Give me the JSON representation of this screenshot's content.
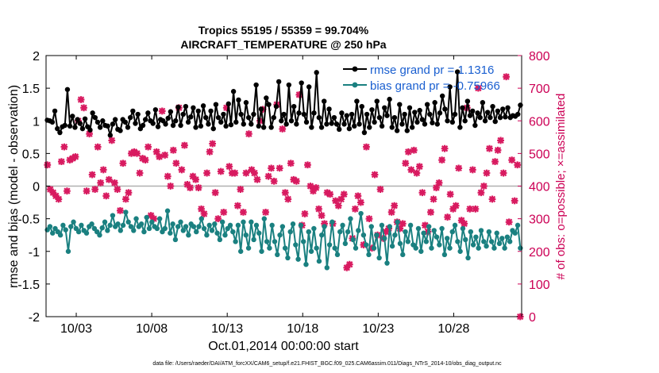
{
  "chart_data": {
    "type": "line",
    "title": "Tropics 55195 / 55359 = 99.704%",
    "subtitle": "AIRCRAFT_TEMPERATURE @ 250 hPa",
    "xlabel": "Oct.01,2014 00:00:00 start",
    "ylabel": "rmse and bias (model - observation)",
    "y2label": "# of obs: o=possible; ×=assimilated",
    "ylim": [
      -2,
      2
    ],
    "y2lim": [
      0,
      800
    ],
    "xlim": [
      1.0,
      32.5
    ],
    "yticks": [
      "-2",
      "-1.5",
      "-1",
      "-0.5",
      "0",
      "0.5",
      "1",
      "1.5",
      "2"
    ],
    "y2ticks": [
      "0",
      "100",
      "200",
      "300",
      "400",
      "500",
      "600",
      "700",
      "800"
    ],
    "xticks": [
      {
        "label": "10/03",
        "day": 3
      },
      {
        "label": "10/08",
        "day": 8
      },
      {
        "label": "10/13",
        "day": 13
      },
      {
        "label": "10/18",
        "day": 18
      },
      {
        "label": "10/23",
        "day": 23
      },
      {
        "label": "10/28",
        "day": 28
      }
    ],
    "legend": {
      "rmse": "rmse grand pr = 1.1316",
      "bias": "bias grand pr = -0.75966"
    },
    "colors": {
      "rmse": "#000000",
      "bias": "#1a8080",
      "obs": "#d81b60",
      "zero": "#b0b0b0"
    },
    "series": [
      {
        "name": "rmse",
        "values": [
          1.01,
          1.0,
          0.98,
          1.15,
          0.88,
          0.82,
          0.91,
          0.93,
          1.48,
          0.92,
          1.07,
          0.9,
          1.02,
          0.96,
          0.88,
          1.03,
          0.91,
          0.86,
          1.12,
          1.05,
          0.98,
          0.9,
          1.0,
          0.93,
          0.92,
          0.78,
          0.95,
          1.02,
          0.87,
          0.85,
          1.02,
          0.98,
          0.9,
          1.05,
          1.15,
          0.96,
          1.1,
          0.88,
          0.93,
          1.02,
          1.12,
          1.0,
          0.96,
          1.17,
          0.91,
          1.02,
          1.0,
          0.95,
          1.04,
          1.14,
          0.93,
          1.0,
          1.21,
          0.93,
          1.1,
          1.22,
          0.98,
          1.06,
          1.2,
          0.9,
          1.15,
          0.92,
          1.23,
          1.05,
          0.95,
          1.15,
          0.88,
          1.25,
          1.05,
          0.98,
          1.1,
          0.92,
          1.26,
          0.94,
          1.45,
          0.98,
          1.32,
          1.1,
          0.95,
          1.28,
          1.05,
          0.95,
          1.1,
          1.55,
          0.92,
          1.18,
          0.9,
          1.35,
          1.25,
          0.9,
          1.05,
          1.22,
          1.6,
          1.0,
          1.1,
          0.95,
          1.55,
          1.0,
          1.22,
          0.95,
          1.12,
          1.58,
          1.1,
          0.98,
          1.52,
          0.9,
          1.12,
          1.74,
          1.05,
          0.9,
          1.3,
          0.95,
          1.18,
          0.96,
          1.05,
          0.95,
          0.87,
          1.12,
          0.95,
          1.08,
          0.88,
          1.1,
          0.92,
          1.3,
          0.95,
          1.22,
          0.82,
          1.1,
          0.9,
          1.17,
          0.98,
          1.3,
          1.05,
          0.92,
          1.2,
          1.08,
          1.33,
          0.9,
          1.05,
          0.85,
          1.25,
          0.95,
          1.1,
          0.85,
          1.2,
          0.9,
          1.13,
          0.98,
          1.16,
          1.02,
          0.95,
          1.25,
          1.1,
          0.97,
          1.28,
          0.95,
          1.12,
          1.38,
          1.18,
          1.0,
          1.52,
          0.98,
          1.1,
          1.75,
          0.9,
          1.2,
          1.0,
          1.3,
          1.08,
          1.15,
          0.93,
          1.12,
          1.05,
          1.28,
          1.0,
          1.13,
          1.05,
          1.22,
          0.99,
          1.15,
          1.05,
          1.18,
          1.06,
          1.2,
          1.05,
          1.08,
          1.07,
          1.1,
          1.24
        ]
      },
      {
        "name": "bias",
        "values": [
          -0.67,
          -0.62,
          -0.72,
          -0.65,
          -0.7,
          -0.75,
          -0.6,
          -0.67,
          -1.0,
          -0.62,
          -0.55,
          -0.65,
          -0.7,
          -0.6,
          -0.68,
          -0.72,
          -0.62,
          -0.58,
          -0.65,
          -0.7,
          -0.75,
          -0.64,
          -0.55,
          -0.68,
          -0.6,
          -0.45,
          -0.62,
          -0.58,
          -0.68,
          -0.6,
          -0.4,
          -0.55,
          -0.62,
          -0.68,
          -0.5,
          -0.62,
          -0.58,
          -0.7,
          -0.48,
          -0.65,
          -0.55,
          -0.62,
          -0.65,
          -0.5,
          -0.7,
          -0.65,
          -0.38,
          -0.72,
          -0.58,
          -0.82,
          -0.62,
          -0.55,
          -0.68,
          -0.62,
          -0.75,
          -0.58,
          -0.62,
          -0.7,
          -0.62,
          -0.5,
          -0.65,
          -0.75,
          -0.6,
          -0.68,
          -0.58,
          -0.72,
          -0.82,
          -0.55,
          -0.75,
          -0.65,
          -0.6,
          -0.7,
          -0.85,
          -0.6,
          -1.0,
          -0.55,
          -0.75,
          -0.95,
          -0.55,
          -0.82,
          -0.6,
          -0.72,
          -1.0,
          -0.5,
          -0.85,
          -0.95,
          -0.6,
          -0.85,
          -1.05,
          -0.75,
          -0.62,
          -0.95,
          -1.1,
          -0.7,
          -0.58,
          -0.9,
          -1.12,
          -0.6,
          -0.85,
          -1.2,
          -0.7,
          -1.0,
          -0.65,
          -0.95,
          -1.15,
          -0.75,
          -0.62,
          -1.25,
          -0.9,
          -0.55,
          -0.95,
          -1.05,
          -0.7,
          -0.6,
          -0.88,
          -0.7,
          -0.5,
          -0.82,
          -0.95,
          -0.68,
          -0.42,
          -0.75,
          -0.9,
          -1.05,
          -0.62,
          -0.95,
          -0.75,
          -1.1,
          -0.6,
          -0.8,
          -1.18,
          -0.62,
          -0.92,
          -0.75,
          -0.55,
          -0.88,
          -1.05,
          -0.7,
          -0.85,
          -0.6,
          -0.9,
          -0.95,
          -0.65,
          -1.0,
          -0.72,
          -0.85,
          -0.62,
          -0.95,
          -0.68,
          -0.78,
          -0.9,
          -0.65,
          -1.05,
          -0.8,
          -0.95,
          -0.7,
          -0.6,
          -0.85,
          -1.0,
          -0.65,
          -0.82,
          -1.1,
          -0.7,
          -0.9,
          -0.78,
          -0.95,
          -0.68,
          -0.85,
          -0.92,
          -0.7,
          -0.85,
          -0.95,
          -0.72,
          -0.88,
          -0.8,
          -0.95,
          -0.78,
          -0.85,
          -0.68,
          -0.72,
          -0.6,
          -0.95
        ]
      },
      {
        "name": "obs_assimilated",
        "values": [
          465,
          390,
          380,
          370,
          360,
          475,
          520,
          385,
          480,
          485,
          490,
          600,
          665,
          640,
          385,
          560,
          435,
          390,
          520,
          410,
          450,
          370,
          420,
          540,
          410,
          390,
          325,
          470,
          360,
          380,
          500,
          505,
          500,
          440,
          485,
          480,
          520,
          310,
          300,
          505,
          490,
          630,
          495,
          430,
          400,
          510,
          470,
          640,
          450,
          525,
          405,
          395,
          430,
          420,
          395,
          330,
          315,
          440,
          505,
          530,
          380,
          300,
          445,
          320,
          640,
          460,
          440,
          440,
          340,
          390,
          320,
          440,
          560,
          450,
          440,
          420,
          600,
          635,
          320,
          430,
          455,
          415,
          650,
          455,
          575,
          380,
          360,
          470,
          420,
          415,
          680,
          280,
          315,
          465,
          400,
          385,
          395,
          330,
          310,
          285,
          380,
          375,
          285,
          355,
          340,
          360,
          375,
          150,
          160,
          240,
          330,
          370,
          350,
          220,
          520,
          300,
          210,
          435,
          250,
          390,
          240,
          260,
          270,
          320,
          340,
          290,
          270,
          285,
          470,
          505,
          450,
          510,
          440,
          460,
          380,
          280,
          260,
          320,
          360,
          395,
          410,
          480,
          515,
          305,
          375,
          330,
          340,
          455,
          295,
          285,
          640,
          330,
          450,
          330,
          700,
          380,
          400,
          440,
          515,
          360,
          475,
          510,
          540,
          440,
          735,
          290,
          480,
          355,
          465,
          0
        ]
      },
      {
        "name": "obs_possible",
        "values": [
          466,
          391,
          381,
          371,
          361,
          476,
          521,
          386,
          481,
          486,
          491,
          601,
          666,
          641,
          386,
          561,
          436,
          391,
          521,
          411,
          451,
          371,
          421,
          541,
          411,
          391,
          326,
          471,
          361,
          381,
          501,
          506,
          501,
          441,
          486,
          481,
          521,
          311,
          301,
          506,
          491,
          631,
          496,
          431,
          401,
          511,
          471,
          641,
          451,
          526,
          406,
          396,
          431,
          421,
          396,
          331,
          316,
          441,
          506,
          531,
          381,
          301,
          446,
          321,
          641,
          461,
          441,
          441,
          341,
          391,
          321,
          441,
          561,
          451,
          441,
          421,
          601,
          636,
          321,
          431,
          456,
          416,
          651,
          456,
          576,
          381,
          361,
          471,
          421,
          416,
          681,
          281,
          316,
          466,
          401,
          386,
          396,
          331,
          311,
          286,
          381,
          376,
          286,
          356,
          341,
          361,
          376,
          151,
          161,
          241,
          331,
          371,
          351,
          221,
          521,
          301,
          211,
          436,
          251,
          391,
          241,
          261,
          271,
          321,
          341,
          291,
          271,
          286,
          471,
          506,
          451,
          511,
          441,
          461,
          381,
          281,
          261,
          321,
          361,
          396,
          411,
          481,
          516,
          306,
          376,
          331,
          341,
          456,
          296,
          286,
          641,
          331,
          451,
          331,
          701,
          381,
          401,
          441,
          516,
          361,
          476,
          511,
          541,
          441,
          736,
          291,
          481,
          356,
          466,
          1
        ]
      }
    ]
  },
  "footer": "data file: /Users/raeder/DAI/ATM_forcXX/CAM6_setup/f.e21.FHIST_BGC.f09_025.CAM6assim.011/Diags_NTrS_2014-10/obs_diag_output.nc"
}
